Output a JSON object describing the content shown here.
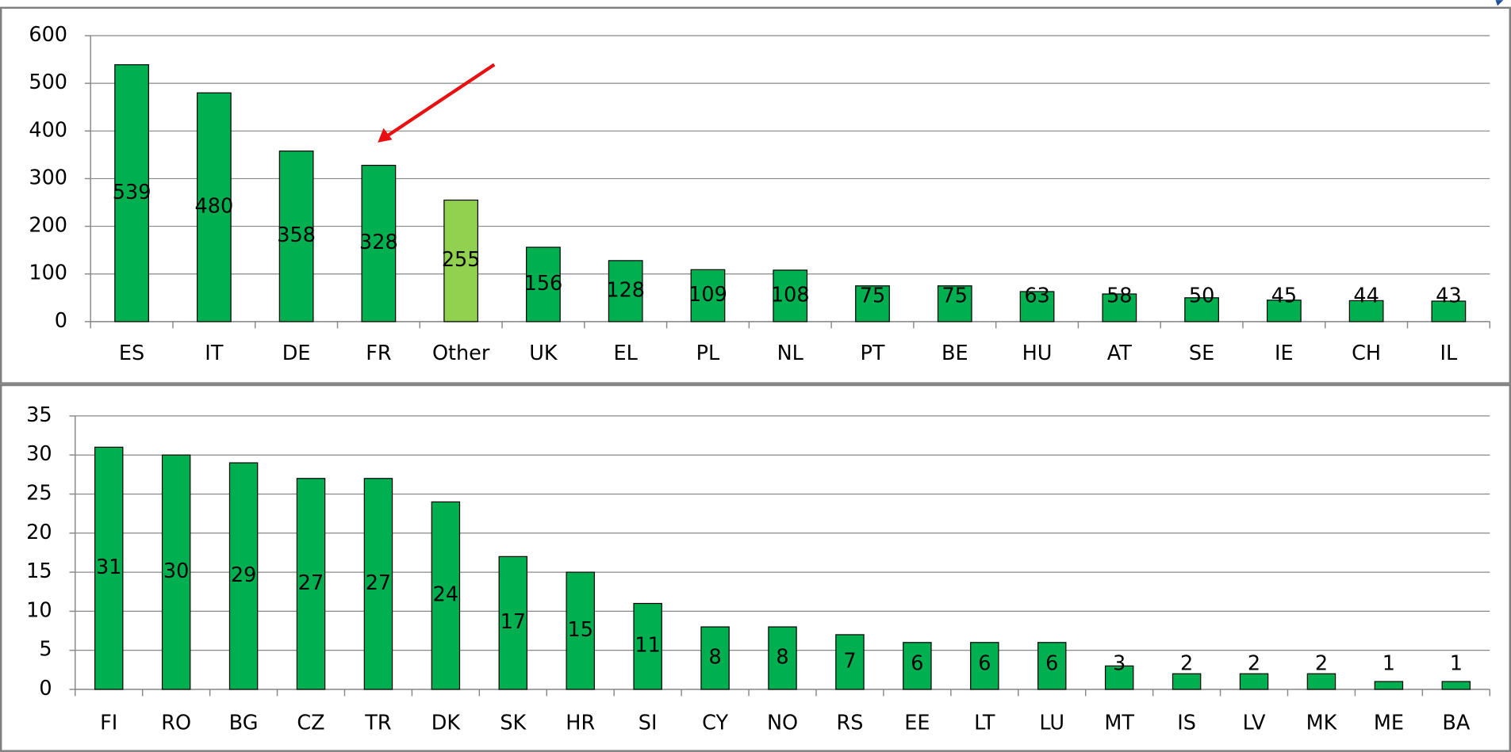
{
  "chart_data": [
    {
      "type": "bar",
      "categories": [
        "ES",
        "IT",
        "DE",
        "FR",
        "Other",
        "UK",
        "EL",
        "PL",
        "NL",
        "PT",
        "BE",
        "HU",
        "AT",
        "SE",
        "IE",
        "CH",
        "IL"
      ],
      "values": [
        539,
        480,
        358,
        328,
        255,
        156,
        128,
        109,
        108,
        75,
        75,
        63,
        58,
        50,
        45,
        44,
        43
      ],
      "colors": [
        "#00b050",
        "#00b050",
        "#00b050",
        "#00b050",
        "#92d050",
        "#00b050",
        "#00b050",
        "#00b050",
        "#00b050",
        "#00b050",
        "#00b050",
        "#00b050",
        "#00b050",
        "#00b050",
        "#00b050",
        "#00b050",
        "#00b050"
      ],
      "ylim": [
        0,
        600
      ],
      "yticks": [
        0,
        100,
        200,
        300,
        400,
        500,
        600
      ],
      "grid": true
    },
    {
      "type": "bar",
      "categories": [
        "FI",
        "RO",
        "BG",
        "CZ",
        "TR",
        "DK",
        "SK",
        "HR",
        "SI",
        "CY",
        "NO",
        "RS",
        "EE",
        "LT",
        "LU",
        "MT",
        "IS",
        "LV",
        "MK",
        "ME",
        "BA"
      ],
      "values": [
        31,
        30,
        29,
        27,
        27,
        24,
        17,
        15,
        11,
        8,
        8,
        7,
        6,
        6,
        6,
        3,
        2,
        2,
        2,
        1,
        1
      ],
      "colors": [
        "#00b050",
        "#00b050",
        "#00b050",
        "#00b050",
        "#00b050",
        "#00b050",
        "#00b050",
        "#00b050",
        "#00b050",
        "#00b050",
        "#00b050",
        "#00b050",
        "#00b050",
        "#00b050",
        "#00b050",
        "#00b050",
        "#00b050",
        "#00b050",
        "#00b050",
        "#00b050",
        "#00b050"
      ],
      "ylim": [
        0,
        35
      ],
      "yticks": [
        0,
        5,
        10,
        15,
        20,
        25,
        30,
        35
      ],
      "grid": true
    }
  ]
}
